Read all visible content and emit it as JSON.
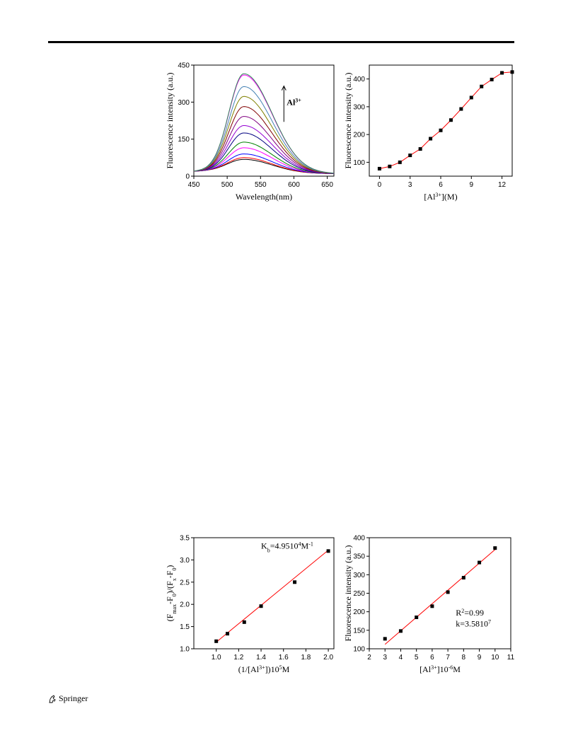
{
  "page": {
    "publisher": "Springer"
  },
  "chart_data": [
    {
      "id": "spectra",
      "type": "line",
      "xlabel": "Wavelength(nm)",
      "ylabel": "Fluorescence intensity (a.u.)",
      "xlim": [
        450,
        660
      ],
      "ylim": [
        0,
        450
      ],
      "xticks": [
        450,
        500,
        550,
        600,
        650
      ],
      "yticks": [
        0,
        150,
        300,
        450
      ],
      "annotation": "Al",
      "annotation_sup": "3+",
      "peak_x": 525,
      "series_peaks": [
        78,
        85,
        100,
        125,
        148,
        185,
        215,
        252,
        292,
        333,
        373,
        420,
        425
      ],
      "colors": [
        "#000000",
        "#ff0000",
        "#0000ff",
        "#ff00ff",
        "#008000",
        "#000080",
        "#9400d3",
        "#800080",
        "#800000",
        "#808000",
        "#4682b4",
        "#ff00ff",
        "#2e8b57"
      ]
    },
    {
      "id": "titration",
      "type": "scatter",
      "xlabel": "[Al",
      "xlabel_sup": "3+",
      "xlabel_tail": "](M)",
      "ylabel": "Fluorescence intensity (a.u.)",
      "xlim": [
        -1,
        13
      ],
      "ylim": [
        50,
        450
      ],
      "xticks": [
        0,
        3,
        6,
        9,
        12
      ],
      "yticks": [
        100,
        200,
        300,
        400
      ],
      "x": [
        0,
        1,
        2,
        3,
        4,
        5,
        6,
        7,
        8,
        9,
        10,
        11,
        12,
        13
      ],
      "y": [
        77,
        85,
        100,
        125,
        148,
        185,
        215,
        252,
        292,
        333,
        373,
        398,
        422,
        425
      ],
      "fit_color": "#ff0000"
    },
    {
      "id": "benesi",
      "type": "scatter",
      "xlabel": "(1/[Al",
      "xlabel_sup": "3+",
      "xlabel_tail": "])10",
      "xlabel_sup2": "5",
      "xlabel_end": "M",
      "ylabel": "(F",
      "ylabel_parts": [
        "max",
        "-F",
        "0",
        ")/(F",
        "x",
        "-F",
        "0",
        ")"
      ],
      "xlim": [
        0.8,
        2.05
      ],
      "ylim": [
        1.0,
        3.5
      ],
      "xticks": [
        1.0,
        1.2,
        1.4,
        1.6,
        1.8,
        2.0
      ],
      "yticks": [
        1.0,
        1.5,
        2.0,
        2.5,
        3.0,
        3.5
      ],
      "x": [
        1.0,
        1.1,
        1.25,
        1.4,
        1.7,
        2.0
      ],
      "y": [
        1.17,
        1.34,
        1.6,
        1.96,
        2.5,
        3.2
      ],
      "fit": [
        [
          1.0,
          1.15
        ],
        [
          2.0,
          3.22
        ]
      ],
      "annotation": "K",
      "annotation_sub": "b",
      "annotation_mid": "=4.9510",
      "annotation_sup": "4",
      "annotation_unit": "M",
      "annotation_unit_sup": "-1",
      "fit_color": "#ff0000"
    },
    {
      "id": "lod",
      "type": "scatter",
      "xlabel": "[Al",
      "xlabel_sup": "3+",
      "xlabel_tail": "]10",
      "xlabel_sup2": "-6",
      "xlabel_end": "M",
      "ylabel": "Fluorescence intensity (a.u.)",
      "xlim": [
        2,
        11
      ],
      "ylim": [
        100,
        400
      ],
      "xticks": [
        2,
        3,
        4,
        5,
        6,
        7,
        8,
        9,
        10,
        11
      ],
      "yticks": [
        100,
        150,
        200,
        250,
        300,
        350,
        400
      ],
      "x": [
        3,
        4,
        5,
        6,
        7,
        8,
        9,
        10
      ],
      "y": [
        127,
        148,
        185,
        215,
        253,
        292,
        333,
        372
      ],
      "fit": [
        [
          3,
          112
        ],
        [
          10,
          368
        ]
      ],
      "annotation1": "R",
      "annotation1_sup": "2",
      "annotation1_tail": "=0.99",
      "annotation2": "k=3.5810",
      "annotation2_sup": "7",
      "fit_color": "#ff0000"
    }
  ]
}
